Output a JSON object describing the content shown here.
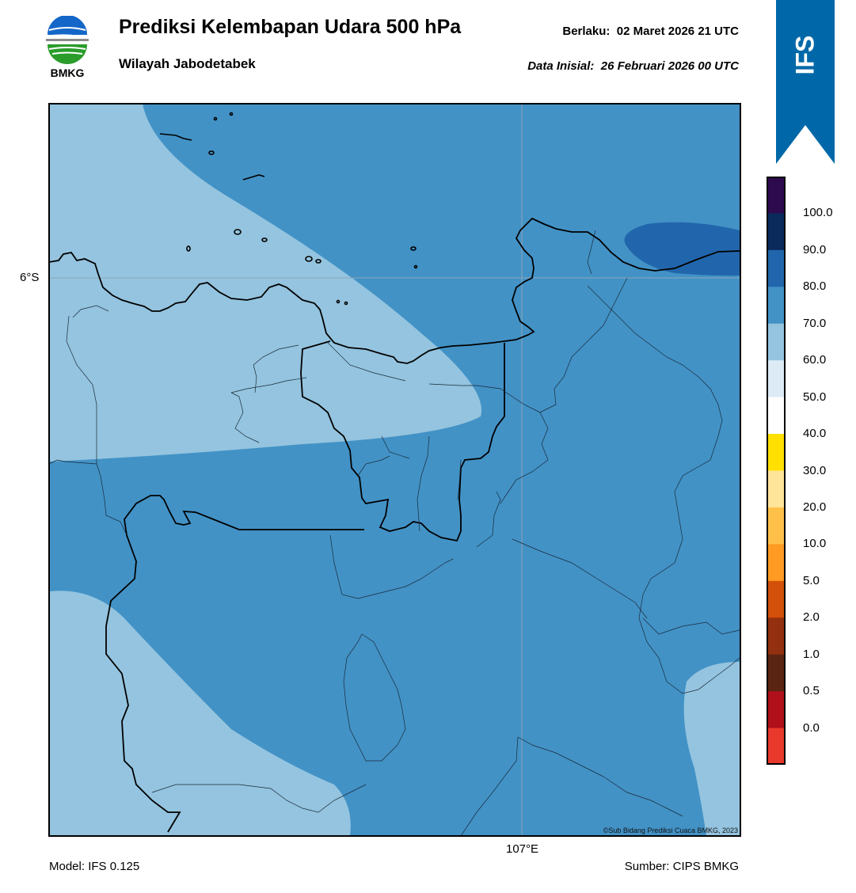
{
  "header": {
    "title": "Prediksi Kelembapan Udara 500 hPa",
    "subtitle": "Wilayah Jabodetabek",
    "valid_label": "Berlaku:",
    "valid_time": "02 Maret 2026 21 UTC",
    "init_label": "Data Inisial:",
    "init_time": "26 Februari 2026 00 UTC"
  },
  "logo": {
    "text": "BMKG",
    "icon": "bmkg-logo"
  },
  "badge": {
    "text": "IFS",
    "color": "#0068a8"
  },
  "map": {
    "lat_label": "6°S",
    "lon_label": "107°E",
    "copyright": "©Sub Bidang Prediksi Cuaca BMKG, 2023",
    "fill_colors": {
      "light": "#94c4df",
      "medium": "#4292c6",
      "dark": "#2166ac"
    }
  },
  "footer": {
    "model": "Model: IFS 0.125",
    "source": "Sumber: CIPS BMKG"
  },
  "colorbar": {
    "labels": [
      "100.0",
      "90.0",
      "80.0",
      "70.0",
      "60.0",
      "50.0",
      "40.0",
      "30.0",
      "20.0",
      "10.0",
      "5.0",
      "2.0",
      "1.0",
      "0.5",
      "0.0"
    ],
    "colors": [
      "#2d0a4e",
      "#0a2a5c",
      "#2166ac",
      "#4292c6",
      "#94c4df",
      "#dcebf5",
      "#ffffff",
      "#ffe000",
      "#ffe59a",
      "#ffc04a",
      "#ff9a22",
      "#d2500a",
      "#933010",
      "#5a2512",
      "#b0101a",
      "#e8392c"
    ]
  }
}
